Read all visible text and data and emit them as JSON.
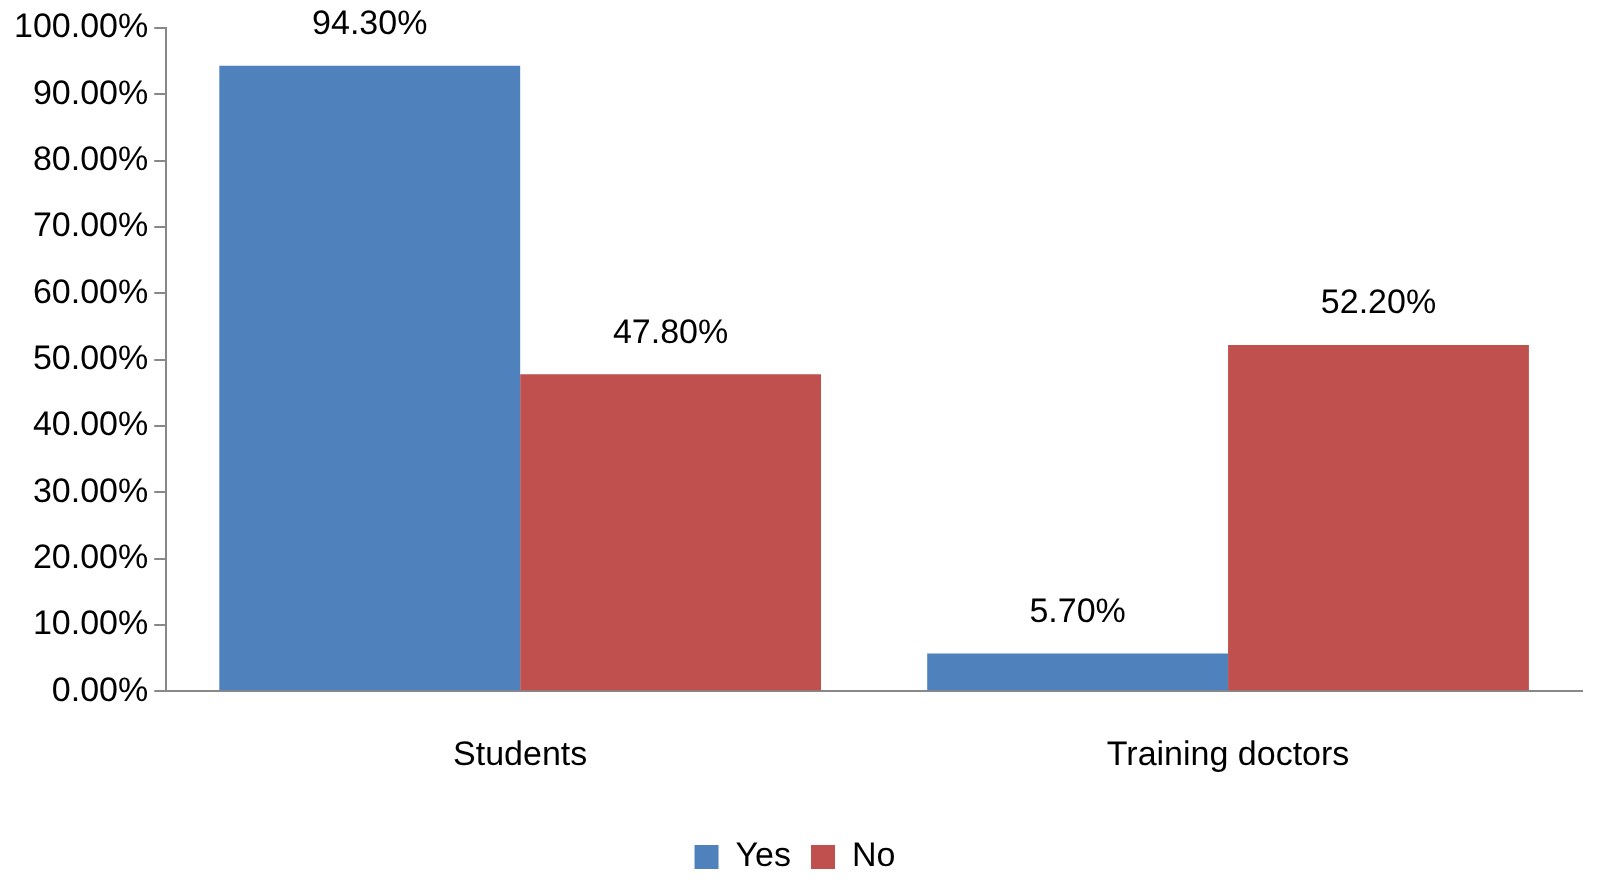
{
  "chart_data": {
    "type": "bar",
    "categories": [
      "Students",
      "Training doctors"
    ],
    "series": [
      {
        "name": "Yes",
        "color": "#4f81bd",
        "values": [
          94.3,
          5.7
        ],
        "value_labels": [
          "94.30%",
          "5.70%"
        ]
      },
      {
        "name": "No",
        "color": "#c0504d",
        "values": [
          47.8,
          52.2
        ],
        "value_labels": [
          "47.80%",
          "52.20%"
        ]
      }
    ],
    "ylim": [
      0,
      100
    ],
    "yticks": [
      {
        "value": 0,
        "label": "0.00%"
      },
      {
        "value": 10,
        "label": "10.00%"
      },
      {
        "value": 20,
        "label": "20.00%"
      },
      {
        "value": 30,
        "label": "30.00%"
      },
      {
        "value": 40,
        "label": "40.00%"
      },
      {
        "value": 50,
        "label": "50.00%"
      },
      {
        "value": 60,
        "label": "60.00%"
      },
      {
        "value": 70,
        "label": "70.00%"
      },
      {
        "value": 80,
        "label": "80.00%"
      },
      {
        "value": 90,
        "label": "90.00%"
      },
      {
        "value": 100,
        "label": "100.00%"
      }
    ],
    "grid": false,
    "legend": "bottom"
  }
}
